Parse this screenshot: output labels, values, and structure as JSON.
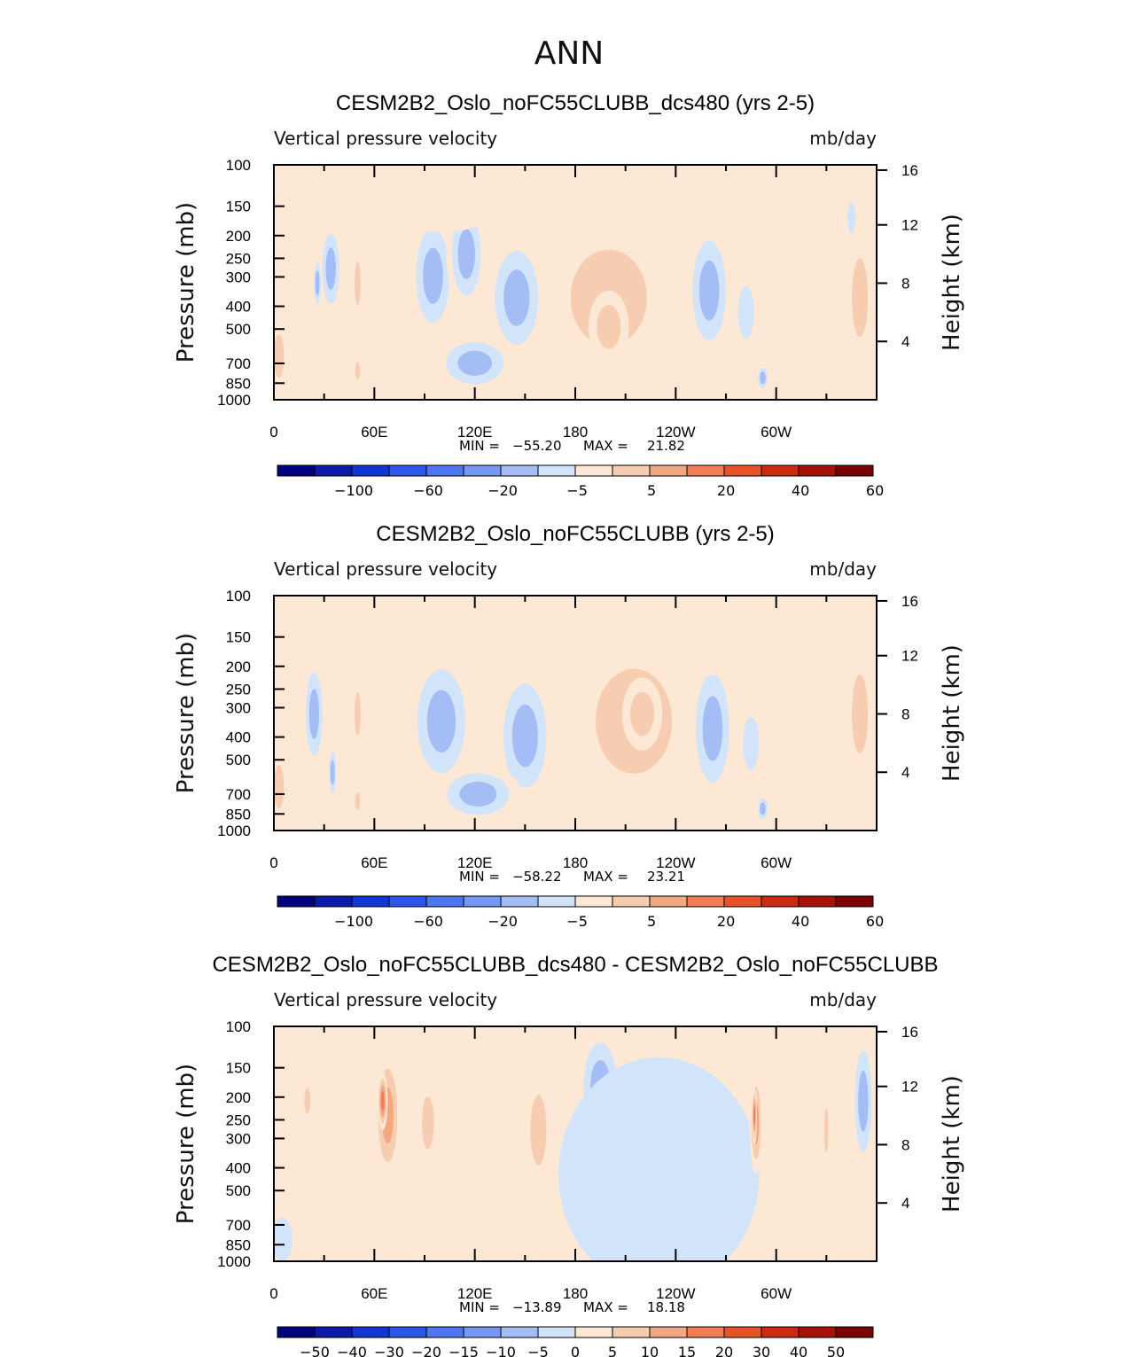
{
  "figure": {
    "season": "ANN"
  },
  "chart_data": [
    {
      "type": "contour",
      "title": "CESM2B2_Oslo_noFC55CLUBB_dcs480 (yrs 2-5)",
      "variable": "Vertical pressure velocity",
      "units": "mb/day",
      "ylabel": "Pressure (mb)",
      "ylabel_right": "Height (km)",
      "x_ticks": [
        "0",
        "60E",
        "120E",
        "180",
        "120W",
        "60W"
      ],
      "y_ticks": [
        "100",
        "150",
        "200",
        "250",
        "300",
        "400",
        "500",
        "700",
        "850",
        "1000"
      ],
      "height_ticks": [
        "16",
        "12",
        "8",
        "4"
      ],
      "stats": {
        "min_label": "MIN =",
        "min": "−55.20",
        "max_label": "MAX =",
        "max": "21.82"
      },
      "levels": [
        "−100",
        "−60",
        "−20",
        "−5",
        "5",
        "20",
        "40",
        "60"
      ],
      "colors": [
        "#00007f",
        "#0c1aa8",
        "#1236d4",
        "#2d57ea",
        "#4d76f0",
        "#7598f2",
        "#a4bdf5",
        "#d2e4fa",
        "#fde8d6",
        "#f7cdb1",
        "#f3a884",
        "#f17d55",
        "#e85228",
        "#cc2a10",
        "#a51208",
        "#7a0101"
      ],
      "blobs": [
        {
          "x": 34,
          "y": 9,
          "rx": 7,
          "ry": 3.4,
          "v": -45
        },
        {
          "x": 26,
          "y": 8,
          "rx": 3,
          "ry": 2,
          "v": -35
        },
        {
          "x": 50,
          "y": 8,
          "rx": 3,
          "ry": 2.5,
          "v": 16
        },
        {
          "x": 50,
          "y": 2,
          "rx": 2.5,
          "ry": 1,
          "v": 14
        },
        {
          "x": 3,
          "y": 3,
          "rx": 5,
          "ry": 2.5,
          "v": 8
        },
        {
          "x": 95,
          "y": 8.5,
          "rx": 14,
          "ry": 4.5,
          "v": -38
        },
        {
          "x": 145,
          "y": 7,
          "rx": 18,
          "ry": 4.5,
          "v": -50
        },
        {
          "x": 115,
          "y": 10,
          "rx": 12,
          "ry": 4,
          "v": -30
        },
        {
          "x": 120,
          "y": 2.5,
          "rx": 24,
          "ry": 2,
          "v": -22
        },
        {
          "x": 100,
          "y": 14,
          "rx": 40,
          "ry": 2.5,
          "v": -3
        },
        {
          "x": 200,
          "y": 7,
          "rx": 38,
          "ry": 5.5,
          "v": 14
        },
        {
          "x": 200,
          "y": 5,
          "rx": 12,
          "ry": 2.5,
          "v": 8
        },
        {
          "x": 260,
          "y": 7.5,
          "rx": 14,
          "ry": 4.8,
          "v": -48
        },
        {
          "x": 282,
          "y": 6,
          "rx": 8,
          "ry": 3,
          "v": -16
        },
        {
          "x": 292,
          "y": 1.5,
          "rx": 4,
          "ry": 1,
          "v": -25
        },
        {
          "x": 350,
          "y": 7,
          "rx": 8,
          "ry": 4.5,
          "v": 14
        },
        {
          "x": 345,
          "y": 12.5,
          "rx": 4,
          "ry": 1.8,
          "v": -10
        },
        {
          "x": 300,
          "y": 15,
          "rx": 55,
          "ry": 1.5,
          "v": 3
        }
      ]
    },
    {
      "type": "contour",
      "title": "CESM2B2_Oslo_noFC55CLUBB (yrs 2-5)",
      "variable": "Vertical pressure velocity",
      "units": "mb/day",
      "ylabel": "Pressure (mb)",
      "ylabel_right": "Height (km)",
      "x_ticks": [
        "0",
        "60E",
        "120E",
        "180",
        "120W",
        "60W"
      ],
      "y_ticks": [
        "100",
        "150",
        "200",
        "250",
        "300",
        "400",
        "500",
        "700",
        "850",
        "1000"
      ],
      "height_ticks": [
        "16",
        "12",
        "8",
        "4"
      ],
      "stats": {
        "min_label": "MIN =",
        "min": "−58.22",
        "max_label": "MAX =",
        "max": "23.21"
      },
      "levels": [
        "−100",
        "−60",
        "−20",
        "−5",
        "5",
        "20",
        "40",
        "60"
      ],
      "colors": [
        "#00007f",
        "#0c1aa8",
        "#1236d4",
        "#2d57ea",
        "#4d76f0",
        "#7598f2",
        "#a4bdf5",
        "#d2e4fa",
        "#fde8d6",
        "#f7cdb1",
        "#f3a884",
        "#f17d55",
        "#e85228",
        "#cc2a10",
        "#a51208",
        "#7a0101"
      ],
      "blobs": [
        {
          "x": 24,
          "y": 8,
          "rx": 7,
          "ry": 4,
          "v": -40
        },
        {
          "x": 35,
          "y": 4,
          "rx": 3,
          "ry": 2,
          "v": -30
        },
        {
          "x": 50,
          "y": 8,
          "rx": 3,
          "ry": 2.5,
          "v": 16
        },
        {
          "x": 50,
          "y": 2,
          "rx": 2.5,
          "ry": 1,
          "v": 14
        },
        {
          "x": 3,
          "y": 3,
          "rx": 5,
          "ry": 2.5,
          "v": 8
        },
        {
          "x": 100,
          "y": 7.5,
          "rx": 20,
          "ry": 5,
          "v": -44
        },
        {
          "x": 150,
          "y": 6.5,
          "rx": 18,
          "ry": 5,
          "v": -54
        },
        {
          "x": 122,
          "y": 2.5,
          "rx": 26,
          "ry": 2,
          "v": -24
        },
        {
          "x": 105,
          "y": 14,
          "rx": 42,
          "ry": 2.5,
          "v": -3
        },
        {
          "x": 215,
          "y": 7.5,
          "rx": 38,
          "ry": 6,
          "v": 15
        },
        {
          "x": 220,
          "y": 8,
          "rx": 12,
          "ry": 2.5,
          "v": 8
        },
        {
          "x": 262,
          "y": 7,
          "rx": 14,
          "ry": 5.2,
          "v": -50
        },
        {
          "x": 285,
          "y": 6,
          "rx": 8,
          "ry": 3,
          "v": -16
        },
        {
          "x": 292,
          "y": 1.5,
          "rx": 4,
          "ry": 1,
          "v": -25
        },
        {
          "x": 350,
          "y": 8,
          "rx": 8,
          "ry": 4.5,
          "v": 18
        },
        {
          "x": 300,
          "y": 15,
          "rx": 55,
          "ry": 1.5,
          "v": 3
        }
      ]
    },
    {
      "type": "contour",
      "title": "CESM2B2_Oslo_noFC55CLUBB_dcs480 - CESM2B2_Oslo_noFC55CLUBB",
      "variable": "Vertical pressure velocity",
      "units": "mb/day",
      "ylabel": "Pressure (mb)",
      "ylabel_right": "Height (km)",
      "x_ticks": [
        "0",
        "60E",
        "120E",
        "180",
        "120W",
        "60W"
      ],
      "y_ticks": [
        "100",
        "150",
        "200",
        "250",
        "300",
        "400",
        "500",
        "700",
        "850",
        "1000"
      ],
      "height_ticks": [
        "16",
        "12",
        "8",
        "4"
      ],
      "stats": {
        "min_label": "MIN =",
        "min": "−13.89",
        "max_label": "MAX =",
        "max": "18.18"
      },
      "levels": [
        "−50",
        "−40",
        "−30",
        "−20",
        "−15",
        "−10",
        "−5",
        "0",
        "5",
        "10",
        "15",
        "20",
        "30",
        "40",
        "50"
      ],
      "colors": [
        "#00007f",
        "#0c1aa8",
        "#1236d4",
        "#2d57ea",
        "#4d76f0",
        "#7598f2",
        "#a4bdf5",
        "#d2e4fa",
        "#fde8d6",
        "#f7cdb1",
        "#f3a884",
        "#f17d55",
        "#e85228",
        "#cc2a10",
        "#a51208",
        "#7a0101"
      ],
      "blobs": [
        {
          "x": 115,
          "y": 9,
          "rx": 55,
          "ry": 6.5,
          "v": 4
        },
        {
          "x": 68,
          "y": 10,
          "rx": 8,
          "ry": 4.5,
          "v": 11
        },
        {
          "x": 65,
          "y": 11,
          "rx": 3,
          "ry": 2,
          "v": 17
        },
        {
          "x": 92,
          "y": 9.5,
          "rx": 6,
          "ry": 3,
          "v": 8
        },
        {
          "x": 158,
          "y": 9,
          "rx": 8,
          "ry": 4,
          "v": 9
        },
        {
          "x": 20,
          "y": 11,
          "rx": 3,
          "ry": 1.5,
          "v": 6
        },
        {
          "x": 195,
          "y": 12,
          "rx": 10,
          "ry": 3,
          "v": -7
        },
        {
          "x": 230,
          "y": 6,
          "rx": 60,
          "ry": 8,
          "v": -2
        },
        {
          "x": 288,
          "y": 9.5,
          "rx": 4,
          "ry": 3.5,
          "v": 12
        },
        {
          "x": 287,
          "y": 10,
          "rx": 1.5,
          "ry": 2,
          "v": 17
        },
        {
          "x": 330,
          "y": 9,
          "rx": 2,
          "ry": 2.5,
          "v": 6
        },
        {
          "x": 352,
          "y": 11,
          "rx": 5,
          "ry": 3.5,
          "v": -9
        },
        {
          "x": 5,
          "y": 1.5,
          "rx": 6,
          "ry": 1.5,
          "v": -3
        },
        {
          "x": 30,
          "y": 2,
          "rx": 5,
          "ry": 1.2,
          "v": 3
        }
      ]
    }
  ]
}
